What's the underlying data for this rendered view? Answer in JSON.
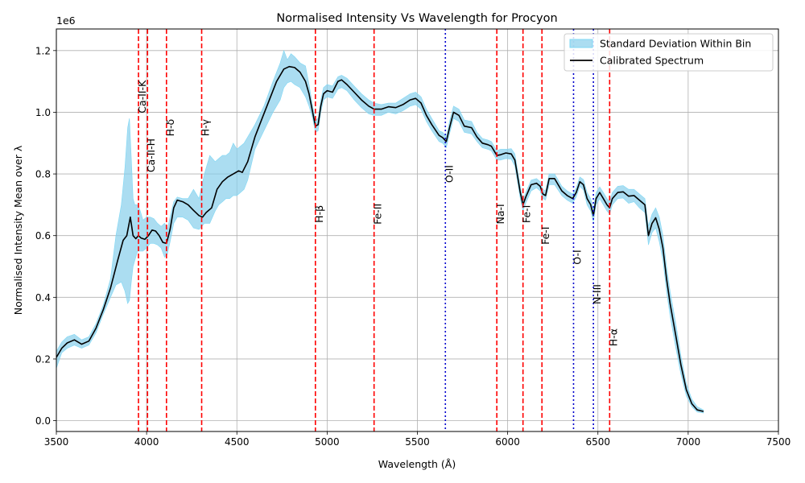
{
  "chart_data": {
    "type": "line",
    "title": "Normalised Intensity Vs Wavelength for Procyon",
    "xlabel": "Wavelength (Å)",
    "ylabel": "Normalised Intensity Mean over λ",
    "y_offset_label": "1e6",
    "xlim": [
      3500,
      7500
    ],
    "ylim": [
      -0.035,
      1.27
    ],
    "x_ticks": [
      3500,
      4000,
      4500,
      5000,
      5500,
      6000,
      6500,
      7000,
      7500
    ],
    "x_tick_labels": [
      "3500",
      "4000",
      "4500",
      "5000",
      "5500",
      "6000",
      "6500",
      "7000",
      "7500"
    ],
    "y_ticks": [
      0.0,
      0.2,
      0.4,
      0.6,
      0.8,
      1.0,
      1.2
    ],
    "y_tick_labels": [
      "0.0",
      "0.2",
      "0.4",
      "0.6",
      "0.8",
      "1.0",
      "1.2"
    ],
    "grid": true,
    "legend_position": "top-right",
    "legend": [
      {
        "label": "Standard Deviation Within Bin",
        "kind": "band",
        "color": "#87ceeb"
      },
      {
        "label": "Calibrated Spectrum",
        "kind": "line",
        "color": "#000000"
      }
    ],
    "spectrum": {
      "name": "Calibrated Spectrum",
      "color": "#000000",
      "x": [
        3500,
        3530,
        3560,
        3600,
        3640,
        3680,
        3720,
        3760,
        3800,
        3840,
        3870,
        3890,
        3900,
        3910,
        3925,
        3940,
        3955,
        3970,
        3990,
        4010,
        4030,
        4050,
        4070,
        4090,
        4110,
        4130,
        4150,
        4170,
        4200,
        4230,
        4260,
        4290,
        4310,
        4330,
        4360,
        4390,
        4420,
        4450,
        4480,
        4510,
        4530,
        4560,
        4600,
        4640,
        4680,
        4720,
        4760,
        4790,
        4820,
        4850,
        4880,
        4900,
        4920,
        4935,
        4950,
        4965,
        4980,
        5000,
        5030,
        5060,
        5080,
        5110,
        5150,
        5190,
        5230,
        5260,
        5300,
        5340,
        5380,
        5420,
        5460,
        5490,
        5520,
        5550,
        5580,
        5620,
        5640,
        5660,
        5680,
        5700,
        5730,
        5760,
        5800,
        5830,
        5860,
        5890,
        5910,
        5940,
        5960,
        5990,
        6020,
        6040,
        6070,
        6085,
        6100,
        6130,
        6160,
        6180,
        6195,
        6210,
        6230,
        6260,
        6300,
        6330,
        6360,
        6380,
        6400,
        6420,
        6440,
        6460,
        6475,
        6490,
        6510,
        6530,
        6550,
        6565,
        6580,
        6610,
        6640,
        6670,
        6700,
        6730,
        6760,
        6780,
        6800,
        6820,
        6840,
        6860,
        6880,
        6900,
        6930,
        6960,
        6990,
        7020,
        7050,
        7085
      ],
      "values": [
        0.205,
        0.235,
        0.252,
        0.262,
        0.248,
        0.258,
        0.3,
        0.36,
        0.43,
        0.52,
        0.585,
        0.6,
        0.63,
        0.66,
        0.6,
        0.59,
        0.6,
        0.592,
        0.588,
        0.6,
        0.618,
        0.615,
        0.6,
        0.578,
        0.575,
        0.62,
        0.69,
        0.715,
        0.71,
        0.7,
        0.682,
        0.665,
        0.66,
        0.675,
        0.69,
        0.75,
        0.775,
        0.79,
        0.8,
        0.81,
        0.805,
        0.84,
        0.92,
        0.98,
        1.04,
        1.1,
        1.14,
        1.148,
        1.145,
        1.13,
        1.1,
        1.06,
        1.0,
        0.955,
        0.96,
        1.02,
        1.06,
        1.07,
        1.065,
        1.1,
        1.105,
        1.09,
        1.065,
        1.04,
        1.02,
        1.01,
        1.01,
        1.018,
        1.015,
        1.025,
        1.04,
        1.045,
        1.03,
        0.99,
        0.96,
        0.925,
        0.918,
        0.905,
        0.955,
        1.0,
        0.99,
        0.955,
        0.95,
        0.92,
        0.9,
        0.895,
        0.89,
        0.86,
        0.862,
        0.868,
        0.865,
        0.845,
        0.74,
        0.7,
        0.725,
        0.765,
        0.77,
        0.76,
        0.735,
        0.73,
        0.785,
        0.785,
        0.745,
        0.73,
        0.72,
        0.74,
        0.775,
        0.765,
        0.72,
        0.7,
        0.665,
        0.72,
        0.74,
        0.72,
        0.7,
        0.69,
        0.72,
        0.74,
        0.742,
        0.728,
        0.73,
        0.715,
        0.7,
        0.6,
        0.64,
        0.658,
        0.62,
        0.56,
        0.46,
        0.38,
        0.28,
        0.18,
        0.1,
        0.055,
        0.035,
        0.03
      ]
    },
    "std_band": {
      "name": "Standard Deviation Within Bin",
      "color": "#87ceeb",
      "x": [
        3500,
        3530,
        3560,
        3600,
        3640,
        3680,
        3720,
        3760,
        3800,
        3830,
        3860,
        3880,
        3895,
        3905,
        3915,
        3925,
        3935,
        3950,
        3965,
        3980,
        4000,
        4020,
        4040,
        4060,
        4080,
        4100,
        4115,
        4130,
        4150,
        4170,
        4200,
        4230,
        4260,
        4290,
        4320,
        4350,
        4380,
        4400,
        4420,
        4440,
        4460,
        4480,
        4500,
        4520,
        4540,
        4560,
        4600,
        4650,
        4700,
        4740,
        4760,
        4780,
        4800,
        4820,
        4850,
        4880,
        4900,
        4920,
        4935,
        4950,
        4965,
        4980,
        5000,
        5030,
        5060,
        5080,
        5110,
        5150,
        5190,
        5230,
        5260,
        5300,
        5340,
        5380,
        5420,
        5460,
        5490,
        5520,
        5550,
        5580,
        5620,
        5640,
        5660,
        5680,
        5700,
        5730,
        5760,
        5800,
        5830,
        5860,
        5890,
        5910,
        5940,
        5960,
        5990,
        6020,
        6040,
        6070,
        6085,
        6100,
        6130,
        6160,
        6180,
        6195,
        6210,
        6230,
        6260,
        6300,
        6330,
        6360,
        6380,
        6400,
        6420,
        6440,
        6460,
        6475,
        6490,
        6510,
        6530,
        6550,
        6565,
        6580,
        6610,
        6640,
        6670,
        6700,
        6730,
        6760,
        6780,
        6800,
        6820,
        6840,
        6860,
        6880,
        6900,
        6930,
        6960,
        6990,
        7020,
        7050,
        7085
      ],
      "upper": [
        0.225,
        0.255,
        0.272,
        0.28,
        0.262,
        0.272,
        0.315,
        0.375,
        0.46,
        0.6,
        0.7,
        0.82,
        0.95,
        0.98,
        0.85,
        0.72,
        0.7,
        0.7,
        0.68,
        0.65,
        0.66,
        0.66,
        0.655,
        0.64,
        0.63,
        0.64,
        0.62,
        0.66,
        0.71,
        0.725,
        0.72,
        0.72,
        0.75,
        0.72,
        0.8,
        0.86,
        0.84,
        0.85,
        0.86,
        0.86,
        0.87,
        0.9,
        0.88,
        0.89,
        0.9,
        0.92,
        0.96,
        1.02,
        1.1,
        1.16,
        1.2,
        1.17,
        1.19,
        1.18,
        1.16,
        1.15,
        1.09,
        1.02,
        0.975,
        0.98,
        1.04,
        1.08,
        1.09,
        1.085,
        1.115,
        1.12,
        1.11,
        1.085,
        1.06,
        1.04,
        1.03,
        1.025,
        1.03,
        1.03,
        1.045,
        1.06,
        1.065,
        1.05,
        1.01,
        0.98,
        0.94,
        0.935,
        0.92,
        0.975,
        1.02,
        1.01,
        0.975,
        0.97,
        0.935,
        0.915,
        0.91,
        0.905,
        0.875,
        0.88,
        0.88,
        0.882,
        0.865,
        0.76,
        0.715,
        0.74,
        0.78,
        0.785,
        0.775,
        0.75,
        0.745,
        0.8,
        0.8,
        0.76,
        0.745,
        0.735,
        0.755,
        0.79,
        0.782,
        0.74,
        0.72,
        0.685,
        0.74,
        0.758,
        0.74,
        0.72,
        0.71,
        0.74,
        0.76,
        0.762,
        0.75,
        0.75,
        0.735,
        0.72,
        0.63,
        0.67,
        0.69,
        0.66,
        0.6,
        0.5,
        0.42,
        0.32,
        0.21,
        0.12,
        0.07,
        0.045,
        0.035
      ],
      "lower": [
        0.17,
        0.22,
        0.235,
        0.245,
        0.235,
        0.245,
        0.285,
        0.345,
        0.4,
        0.44,
        0.45,
        0.42,
        0.38,
        0.39,
        0.45,
        0.5,
        0.52,
        0.55,
        0.55,
        0.55,
        0.56,
        0.575,
        0.575,
        0.57,
        0.56,
        0.53,
        0.54,
        0.58,
        0.64,
        0.66,
        0.66,
        0.65,
        0.625,
        0.62,
        0.64,
        0.64,
        0.68,
        0.7,
        0.71,
        0.72,
        0.72,
        0.73,
        0.73,
        0.74,
        0.75,
        0.78,
        0.88,
        0.94,
        1.0,
        1.04,
        1.08,
        1.095,
        1.1,
        1.09,
        1.08,
        1.05,
        1.02,
        0.98,
        0.935,
        0.94,
        1.0,
        1.04,
        1.05,
        1.045,
        1.075,
        1.08,
        1.07,
        1.04,
        1.015,
        0.995,
        0.99,
        0.99,
        1.0,
        0.995,
        1.005,
        1.02,
        1.025,
        1.01,
        0.97,
        0.94,
        0.905,
        0.9,
        0.885,
        0.935,
        0.98,
        0.97,
        0.935,
        0.93,
        0.905,
        0.885,
        0.88,
        0.875,
        0.845,
        0.845,
        0.85,
        0.848,
        0.825,
        0.72,
        0.68,
        0.705,
        0.745,
        0.755,
        0.745,
        0.72,
        0.715,
        0.765,
        0.765,
        0.73,
        0.715,
        0.705,
        0.725,
        0.76,
        0.748,
        0.7,
        0.68,
        0.645,
        0.7,
        0.72,
        0.7,
        0.68,
        0.67,
        0.7,
        0.72,
        0.722,
        0.705,
        0.71,
        0.69,
        0.675,
        0.57,
        0.61,
        0.625,
        0.58,
        0.52,
        0.42,
        0.34,
        0.24,
        0.15,
        0.08,
        0.045,
        0.028,
        0.025
      ]
    },
    "reference_lines": [
      {
        "x": 3955,
        "label": "Ca-II-K",
        "style": "dashed",
        "color": "#ff0000",
        "label_y": 1.05
      },
      {
        "x": 4005,
        "label": "Ca-II-H",
        "style": "dashed",
        "color": "#ff0000",
        "label_y": 0.86
      },
      {
        "x": 4110,
        "label": "H-δ",
        "style": "dashed",
        "color": "#ff0000",
        "label_y": 0.95
      },
      {
        "x": 4305,
        "label": "H-γ",
        "style": "dashed",
        "color": "#ff0000",
        "label_y": 0.95
      },
      {
        "x": 4935,
        "label": "H-β",
        "style": "dashed",
        "color": "#ff0000",
        "label_y": 0.67
      },
      {
        "x": 5260,
        "label": "Fe-II",
        "style": "dashed",
        "color": "#ff0000",
        "label_y": 0.67
      },
      {
        "x": 5655,
        "label": "O-II",
        "style": "dotted",
        "color": "#0000cd",
        "label_y": 0.8
      },
      {
        "x": 5940,
        "label": "Na-I",
        "style": "dashed",
        "color": "#ff0000",
        "label_y": 0.67
      },
      {
        "x": 6085,
        "label": "Fe-I",
        "style": "dashed",
        "color": "#ff0000",
        "label_y": 0.67
      },
      {
        "x": 6190,
        "label": "Fe-I",
        "style": "dashed",
        "color": "#ff0000",
        "label_y": 0.6
      },
      {
        "x": 6365,
        "label": "O-I",
        "style": "dotted",
        "color": "#0000cd",
        "label_y": 0.53
      },
      {
        "x": 6475,
        "label": "N-III",
        "style": "dotted",
        "color": "#0000cd",
        "label_y": 0.41
      },
      {
        "x": 6565,
        "label": "H-α",
        "style": "dashed",
        "color": "#ff0000",
        "label_y": 0.27
      }
    ]
  }
}
